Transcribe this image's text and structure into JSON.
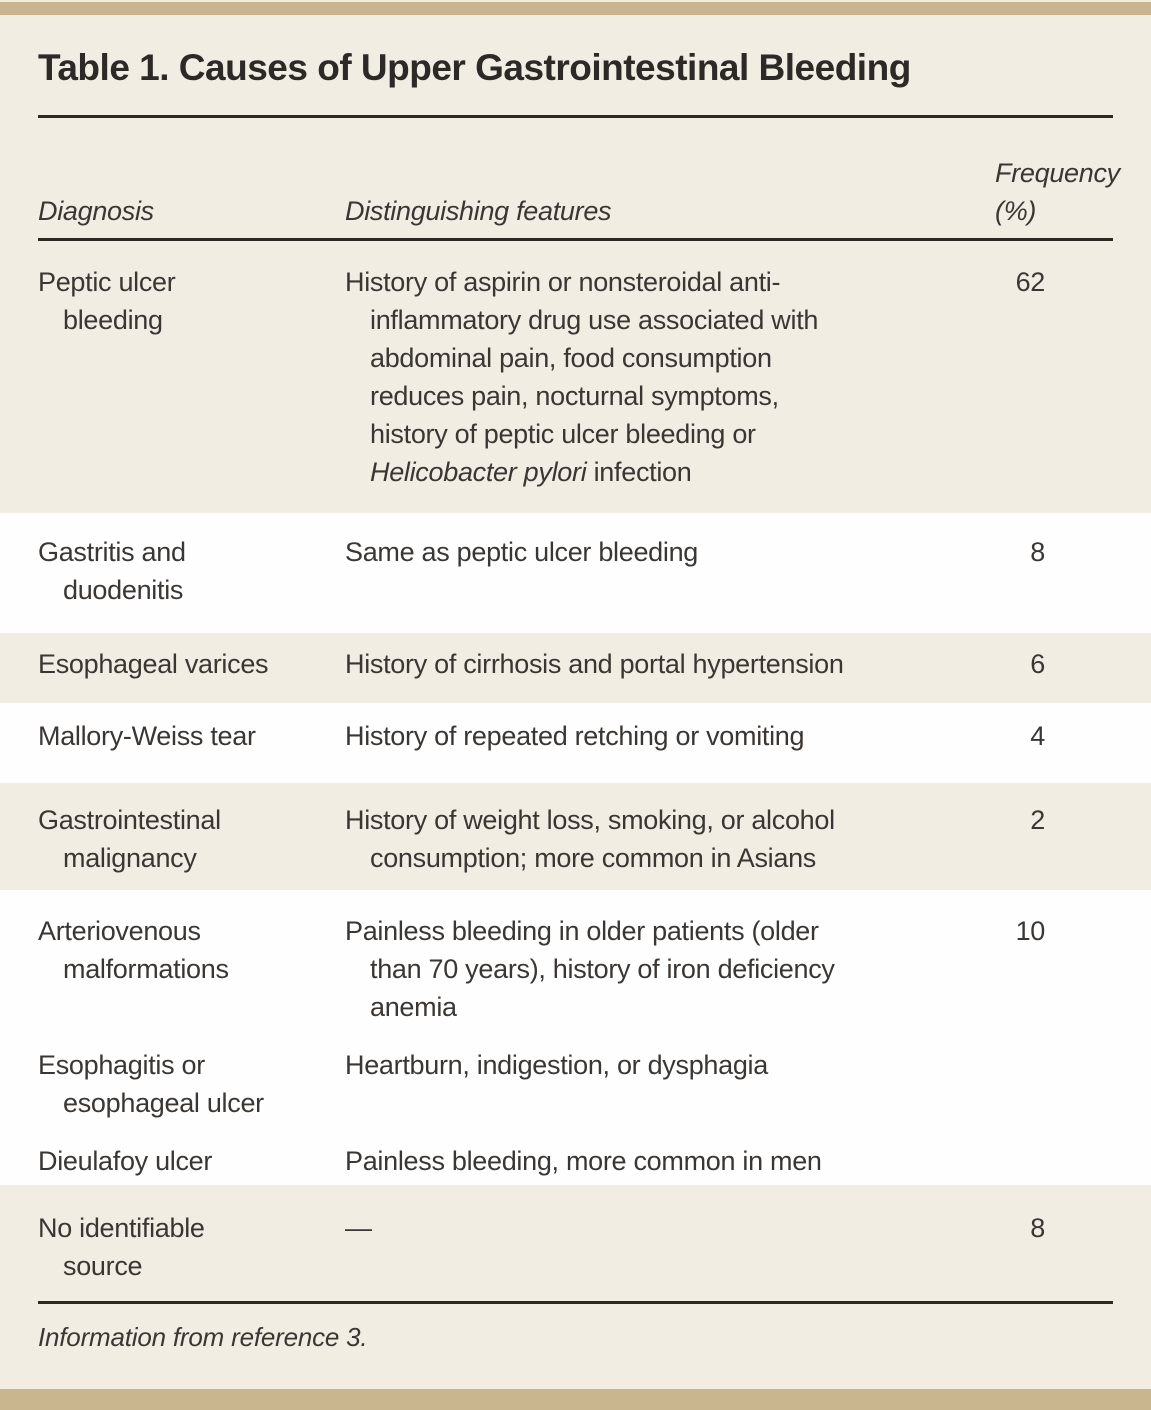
{
  "title": "Table 1. Causes of Upper Gastrointestinal Bleeding",
  "header": {
    "diagnosis": "Diagnosis",
    "features": "Distinguishing features",
    "frequency": "Frequency\n(%)"
  },
  "rows": [
    {
      "diagnosis": "Peptic ulcer\nbleeding",
      "features": [
        {
          "t": "History of aspirin or nonsteroidal anti-\ninflammatory drug use associated with\nabdominal pain, food consumption\nreduces pain, nocturnal symptoms,\nhistory of peptic ulcer bleeding or\n"
        },
        {
          "t": "Helicobacter pylori",
          "italic": true
        },
        {
          "t": " infection"
        }
      ],
      "frequency": "62",
      "shade": "beige"
    },
    {
      "diagnosis": "Gastritis and\nduodenitis",
      "features": [
        {
          "t": "Same as peptic ulcer bleeding"
        }
      ],
      "frequency": "8",
      "shade": "white"
    },
    {
      "diagnosis": "Esophageal varices",
      "features": [
        {
          "t": "History of cirrhosis and portal hypertension"
        }
      ],
      "frequency": "6",
      "shade": "beige"
    },
    {
      "diagnosis": "Mallory-Weiss tear",
      "features": [
        {
          "t": "History of repeated retching or vomiting"
        }
      ],
      "frequency": "4",
      "shade": "white"
    },
    {
      "diagnosis": "Gastrointestinal\nmalignancy",
      "features": [
        {
          "t": "History of weight loss, smoking, or alcohol\nconsumption; more common in Asians"
        }
      ],
      "frequency": "2",
      "shade": "beige"
    },
    {
      "diagnosis": "Arteriovenous\nmalformations",
      "features": [
        {
          "t": "Painless bleeding in older patients (older\nthan 70 years), history of iron deficiency\nanemia"
        }
      ],
      "frequency": "10",
      "shade": "white"
    },
    {
      "diagnosis": "Esophagitis or\nesophageal ulcer",
      "features": [
        {
          "t": "Heartburn, indigestion, or dysphagia"
        }
      ],
      "frequency": "",
      "shade": "white"
    },
    {
      "diagnosis": "Dieulafoy ulcer",
      "features": [
        {
          "t": "Painless bleeding, more common in men"
        }
      ],
      "frequency": "",
      "shade": "white"
    },
    {
      "diagnosis": "No identifiable\nsource",
      "features": [
        {
          "t": "—"
        }
      ],
      "frequency": "8",
      "shade": "beige"
    }
  ],
  "footnote": "Information from reference 3.",
  "colors": {
    "beige": "#F2EDE3",
    "white": "#FEFEFE",
    "tan": "#C9B58E",
    "rule": "#2D2A26",
    "text": "#3A3633",
    "title": "#2C2926"
  }
}
